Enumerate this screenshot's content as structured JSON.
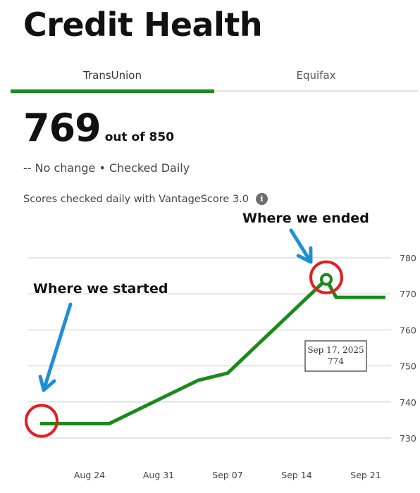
{
  "page": {
    "title": "Credit Health"
  },
  "tabs": [
    {
      "label": "TransUnion",
      "active": true
    },
    {
      "label": "Equifax",
      "active": false
    }
  ],
  "score": {
    "value": "769",
    "out_of": "out of 850",
    "status": "-- No change • Checked Daily",
    "note": "Scores checked daily with VantageScore 3.0",
    "info_icon": "info-icon"
  },
  "colors": {
    "accent": "#1b8a1b",
    "annotation_circle": "#e31e24",
    "arrow": "#1e8fd6"
  },
  "annotations": {
    "start_label": "Where we started",
    "end_label": "Where we ended"
  },
  "chart_data": {
    "type": "line",
    "x_ticks": [
      "Aug 24",
      "Aug 31",
      "Sep 07",
      "Sep 14",
      "Sep 21"
    ],
    "y_ticks": [
      780,
      770,
      760,
      750,
      740,
      730
    ],
    "ylim": [
      730,
      780
    ],
    "grid": true,
    "series": [
      {
        "points": [
          {
            "x": "2025-08-19",
            "y": 734
          },
          {
            "x": "2025-08-26",
            "y": 734
          },
          {
            "x": "2025-09-04",
            "y": 746
          },
          {
            "x": "2025-09-07",
            "y": 748
          },
          {
            "x": "2025-09-17",
            "y": 774
          },
          {
            "x": "2025-09-18",
            "y": 769
          },
          {
            "x": "2025-09-23",
            "y": 769
          }
        ]
      }
    ],
    "tooltip": {
      "date": "Sep 17, 2025",
      "value": "774"
    },
    "highlight_start": {
      "x": "2025-08-19",
      "y": 734
    },
    "highlight_end": {
      "x": "2025-09-17",
      "y": 774
    }
  }
}
